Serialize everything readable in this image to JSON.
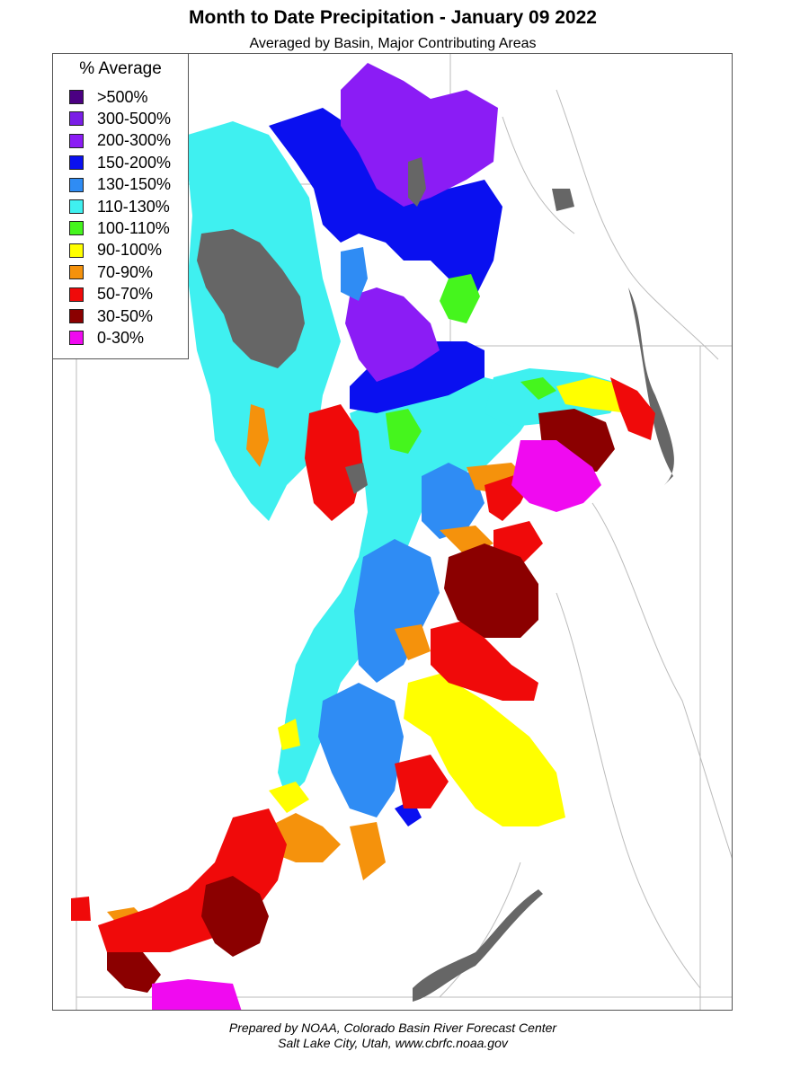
{
  "title": "Month to Date Precipitation - January 09 2022",
  "subtitle": "Averaged by Basin, Major Contributing Areas",
  "legend": {
    "title": "% Average",
    "items": [
      {
        "label": ">500%",
        "color": "#4b0082"
      },
      {
        "label": "300-500%",
        "color": "#7a1ee6"
      },
      {
        "label": "200-300%",
        "color": "#8b1cf5"
      },
      {
        "label": "150-200%",
        "color": "#0a10f0"
      },
      {
        "label": "130-150%",
        "color": "#2f8cf4"
      },
      {
        "label": "110-130%",
        "color": "#3ff0f0"
      },
      {
        "label": "100-110%",
        "color": "#45f51d"
      },
      {
        "label": "90-100%",
        "color": "#ffff00"
      },
      {
        "label": "70-90%",
        "color": "#f5920c"
      },
      {
        "label": "50-70%",
        "color": "#f00a0a"
      },
      {
        "label": "30-50%",
        "color": "#8b0000"
      },
      {
        "label": "0-30%",
        "color": "#f00af0"
      }
    ]
  },
  "no_data_color": "#666666",
  "footer": {
    "line1": "Prepared by NOAA, Colorado Basin River Forecast Center",
    "line2": "Salt Lake City, Utah, www.cbrfc.noaa.gov"
  }
}
